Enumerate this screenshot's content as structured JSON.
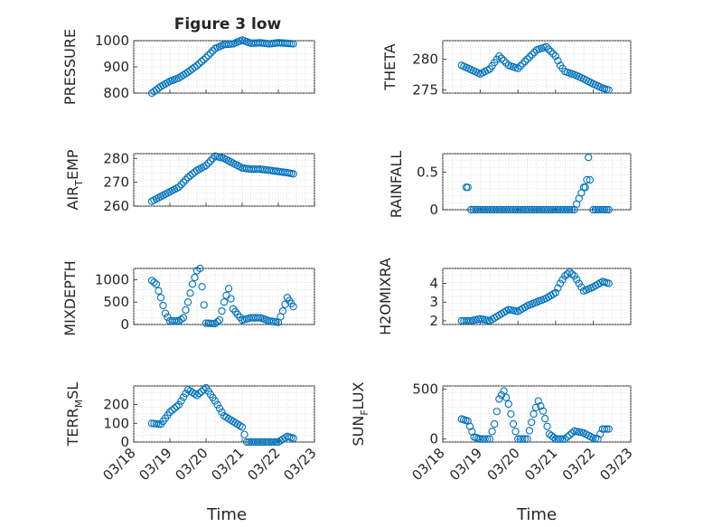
{
  "title": "Figure 3 low",
  "chart_data": [
    {
      "type": "scatter",
      "ylabel": "PRESSURE",
      "xlim": [
        "03/18",
        "03/23"
      ],
      "ylim": [
        800,
        1000
      ],
      "yticks": [
        800,
        900,
        1000
      ],
      "x": [
        "03/18 12:00",
        "03/18 18:00",
        "03/19 00:00",
        "03/19 06:00",
        "03/19 12:00",
        "03/19 18:00",
        "03/20 00:00",
        "03/20 06:00",
        "03/20 12:00",
        "03/20 18:00",
        "03/21 00:00",
        "03/21 06:00",
        "03/21 12:00",
        "03/21 18:00",
        "03/22 00:00",
        "03/22 06:00",
        "03/22 10:00"
      ],
      "y": [
        800,
        825,
        845,
        858,
        880,
        905,
        935,
        970,
        985,
        988,
        1002,
        990,
        992,
        988,
        992,
        990,
        988
      ]
    },
    {
      "type": "scatter",
      "ylabel": "THETA",
      "xlim": [
        "03/18",
        "03/23"
      ],
      "ylim": [
        274.5,
        283
      ],
      "yticks": [
        275,
        280
      ],
      "x": [
        "03/18 12:00",
        "03/18 18:00",
        "03/19 00:00",
        "03/19 06:00",
        "03/19 12:00",
        "03/19 18:00",
        "03/20 00:00",
        "03/20 06:00",
        "03/20 12:00",
        "03/20 18:00",
        "03/21 00:00",
        "03/21 03:00",
        "03/21 06:00",
        "03/21 12:00",
        "03/21 18:00",
        "03/22 00:00",
        "03/22 06:00",
        "03/22 10:00"
      ],
      "y": [
        279,
        278.3,
        277.6,
        278.4,
        280.5,
        279.0,
        278.5,
        280.0,
        281.5,
        282.0,
        280.5,
        279.0,
        278.0,
        277.5,
        276.8,
        276.0,
        275.3,
        275.0
      ]
    },
    {
      "type": "scatter",
      "ylabel": "AIR_TEMP",
      "xlim": [
        "03/18",
        "03/23"
      ],
      "ylim": [
        260,
        282
      ],
      "yticks": [
        260,
        270,
        280
      ],
      "x": [
        "03/18 12:00",
        "03/18 18:00",
        "03/19 00:00",
        "03/19 06:00",
        "03/19 12:00",
        "03/19 18:00",
        "03/20 00:00",
        "03/20 06:00",
        "03/20 12:00",
        "03/20 18:00",
        "03/21 00:00",
        "03/21 06:00",
        "03/21 12:00",
        "03/21 18:00",
        "03/22 00:00",
        "03/22 06:00",
        "03/22 10:00"
      ],
      "y": [
        262,
        264,
        266,
        268,
        272,
        275,
        277,
        281,
        280,
        278,
        276,
        275.5,
        275.5,
        275,
        274.5,
        274,
        273.5
      ]
    },
    {
      "type": "scatter",
      "ylabel": "RAINFALL",
      "xlim": [
        "03/18",
        "03/23"
      ],
      "ylim": [
        0,
        0.75
      ],
      "yticks": [
        0,
        0.5
      ],
      "x": [
        "03/18 15:00",
        "03/18 16:00",
        "03/18 18:00",
        "03/19 00:00",
        "03/19 06:00",
        "03/19 12:00",
        "03/19 18:00",
        "03/20 00:00",
        "03/20 06:00",
        "03/20 12:00",
        "03/20 18:00",
        "03/21 00:00",
        "03/21 06:00",
        "03/21 12:00",
        "03/21 18:00",
        "03/21 19:00",
        "03/21 20:00",
        "03/21 21:00",
        "03/21 22:00",
        "03/22 00:00",
        "03/22 06:00",
        "03/22 10:00"
      ],
      "y": [
        0.3,
        0.3,
        0,
        0,
        0,
        0,
        0,
        0,
        0,
        0,
        0,
        0,
        0,
        0,
        0.3,
        0.3,
        0.4,
        0.7,
        0.4,
        0,
        0,
        0
      ]
    },
    {
      "type": "scatter",
      "ylabel": "MIXDEPTH",
      "xlim": [
        "03/18",
        "03/23"
      ],
      "ylim": [
        0,
        1250
      ],
      "yticks": [
        0,
        500,
        1000
      ],
      "x": [
        "03/18 12:00",
        "03/18 15:00",
        "03/18 18:00",
        "03/18 21:00",
        "03/19 00:00",
        "03/19 06:00",
        "03/19 09:00",
        "03/19 12:00",
        "03/19 15:00",
        "03/19 18:00",
        "03/19 20:00",
        "03/20 00:00",
        "03/20 06:00",
        "03/20 09:00",
        "03/20 12:00",
        "03/20 15:00",
        "03/20 18:00",
        "03/21 00:00",
        "03/21 06:00",
        "03/21 12:00",
        "03/21 18:00",
        "03/22 00:00",
        "03/22 03:00",
        "03/22 06:00",
        "03/22 10:00"
      ],
      "y": [
        980,
        900,
        600,
        250,
        80,
        80,
        150,
        500,
        900,
        1200,
        1250,
        30,
        20,
        100,
        500,
        800,
        350,
        100,
        150,
        150,
        80,
        50,
        300,
        600,
        400
      ]
    },
    {
      "type": "scatter",
      "ylabel": "H2OMIXRA",
      "xlim": [
        "03/18",
        "03/23"
      ],
      "ylim": [
        1.8,
        4.8
      ],
      "yticks": [
        2,
        3,
        4
      ],
      "x": [
        "03/18 12:00",
        "03/18 18:00",
        "03/19 00:00",
        "03/19 06:00",
        "03/19 12:00",
        "03/19 18:00",
        "03/20 00:00",
        "03/20 06:00",
        "03/20 12:00",
        "03/20 18:00",
        "03/21 00:00",
        "03/21 03:00",
        "03/21 06:00",
        "03/21 09:00",
        "03/21 12:00",
        "03/21 18:00",
        "03/22 00:00",
        "03/22 06:00",
        "03/22 10:00"
      ],
      "y": [
        2.0,
        2.0,
        2.1,
        2.0,
        2.3,
        2.6,
        2.5,
        2.8,
        3.0,
        3.2,
        3.5,
        4.0,
        4.4,
        4.6,
        4.4,
        3.6,
        3.8,
        4.1,
        4.0
      ]
    },
    {
      "type": "scatter",
      "ylabel": "TERR_MSL",
      "xlim": [
        "03/18",
        "03/23"
      ],
      "ylim": [
        0,
        300
      ],
      "yticks": [
        0,
        100,
        200
      ],
      "x": [
        "03/18 12:00",
        "03/18 18:00",
        "03/19 00:00",
        "03/19 06:00",
        "03/19 12:00",
        "03/19 18:00",
        "03/20 00:00",
        "03/20 06:00",
        "03/20 12:00",
        "03/20 18:00",
        "03/21 00:00",
        "03/21 03:00",
        "03/21 06:00",
        "03/21 12:00",
        "03/21 18:00",
        "03/22 00:00",
        "03/22 06:00",
        "03/22 10:00"
      ],
      "y": [
        100,
        95,
        160,
        200,
        280,
        250,
        290,
        220,
        140,
        110,
        80,
        0,
        0,
        0,
        0,
        0,
        30,
        20
      ]
    },
    {
      "type": "scatter",
      "ylabel": "SUN_FLUX",
      "xlim": [
        "03/18",
        "03/23"
      ],
      "ylim": [
        -30,
        530
      ],
      "yticks": [
        0,
        500
      ],
      "x": [
        "03/18 12:00",
        "03/18 16:00",
        "03/18 20:00",
        "03/19 00:00",
        "03/19 06:00",
        "03/19 09:00",
        "03/19 12:00",
        "03/19 15:00",
        "03/19 18:00",
        "03/19 21:00",
        "03/20 00:00",
        "03/20 06:00",
        "03/20 10:00",
        "03/20 13:00",
        "03/20 16:00",
        "03/20 20:00",
        "03/21 00:00",
        "03/21 06:00",
        "03/21 12:00",
        "03/21 18:00",
        "03/22 00:00",
        "03/22 03:00",
        "03/22 06:00",
        "03/22 10:00"
      ],
      "y": [
        200,
        180,
        20,
        0,
        0,
        150,
        400,
        480,
        350,
        150,
        0,
        0,
        250,
        380,
        280,
        50,
        0,
        0,
        80,
        60,
        10,
        0,
        100,
        100
      ]
    }
  ],
  "x_tick_labels": [
    "03/18",
    "03/19",
    "03/20",
    "03/21",
    "03/22",
    "03/23"
  ],
  "xlabel_left": "Time",
  "xlabel_right": "Time",
  "ylabels": {
    "pressure": "PRESSURE",
    "theta": "THETA",
    "air_main": "AIR",
    "air_sub": "T",
    "air_rest": "EMP",
    "rainfall": "RAINFALL",
    "mixdepth": "MIXDEPTH",
    "h2o": "H2OMIXRA",
    "terr_main": "TERR",
    "terr_sub": "M",
    "terr_rest": "SL",
    "sun_main": "SUN",
    "sun_sub": "F",
    "sun_rest": "LUX"
  }
}
